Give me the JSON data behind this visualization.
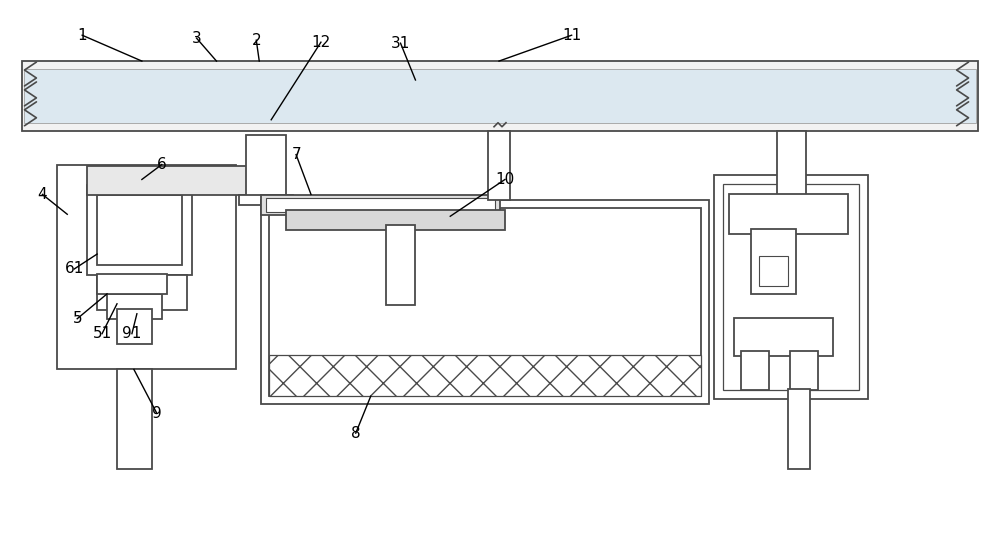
{
  "bg_color": "#ffffff",
  "lc": "#4a4a4a",
  "lw": 1.3,
  "fontsize": 11
}
